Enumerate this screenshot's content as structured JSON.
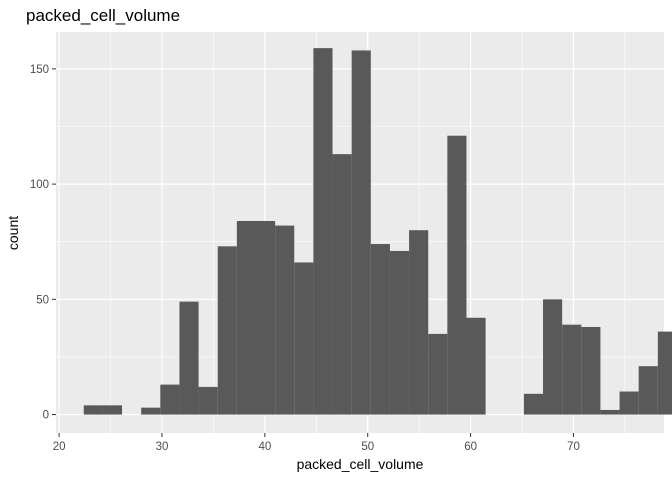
{
  "chart_data": {
    "type": "bar",
    "title": "packed_cell_volume",
    "xlabel": "packed_cell_volume",
    "ylabel": "count",
    "bin_width": 1.86,
    "first_bin_left": 22.4,
    "xlim": [
      19.7,
      78.8
    ],
    "ylim": [
      -8,
      166
    ],
    "x_ticks": [
      20,
      30,
      40,
      50,
      60,
      70
    ],
    "y_ticks": [
      0,
      50,
      100,
      150
    ],
    "x_tick_labels": [
      "20",
      "30",
      "40",
      "50",
      "60",
      "70"
    ],
    "y_tick_labels": [
      "0",
      "50",
      "100",
      "150"
    ],
    "counts": [
      4,
      4,
      0,
      3,
      13,
      49,
      12,
      73,
      84,
      84,
      82,
      66,
      159,
      113,
      158,
      74,
      71,
      80,
      35,
      121,
      42,
      0,
      0,
      9,
      50,
      39,
      38,
      2,
      10,
      21,
      36
    ],
    "grid": true,
    "legend": "none",
    "colors": {
      "panel_background": "#ebebeb",
      "grid_major": "#ffffff",
      "bar_fill": "#595959",
      "tick": "#333333"
    }
  }
}
